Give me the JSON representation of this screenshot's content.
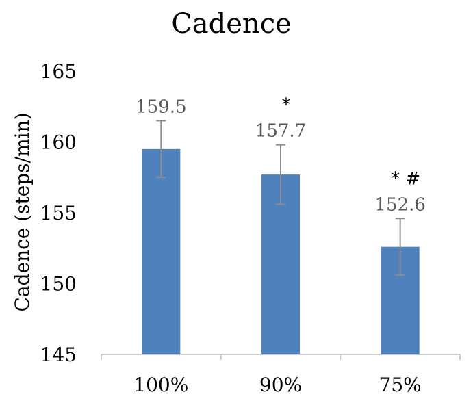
{
  "chart_data": {
    "type": "bar",
    "title": "Cadence",
    "xlabel": "",
    "ylabel": "Cadence (steps/min)",
    "categories": [
      "100%",
      "90%",
      "75%"
    ],
    "values": [
      159.5,
      157.7,
      152.6
    ],
    "errors": [
      2.0,
      2.1,
      2.0
    ],
    "data_labels": [
      "159.5",
      "157.7",
      "152.6"
    ],
    "annotations": [
      "",
      "*",
      "* #"
    ],
    "ylim": [
      145,
      165
    ],
    "yticks": [
      145,
      150,
      155,
      160,
      165
    ],
    "ytick_labels": [
      "145",
      "150",
      "155",
      "160",
      "165"
    ],
    "grid": false,
    "legend": "none",
    "colors": {
      "bar": "#4f81bd",
      "error_bar": "#8c8c8c",
      "axis": "#bfbfbf",
      "data_label": "#595959"
    }
  }
}
